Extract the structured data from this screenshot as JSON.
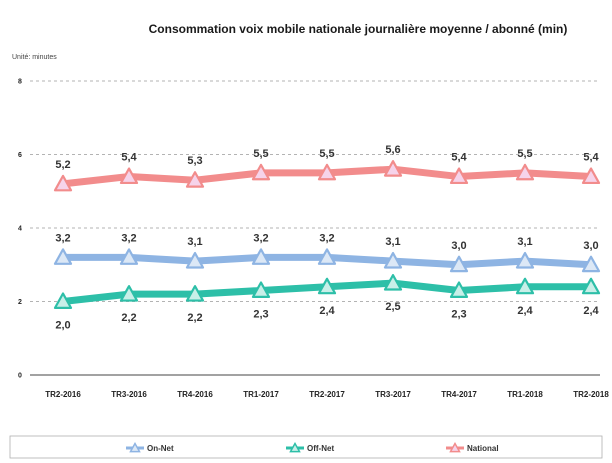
{
  "chart_data": {
    "type": "line",
    "title": "Consommation voix mobile  nationale journalière moyenne / abonné (min)",
    "unit_label": "Unité: minutes",
    "ylim": [
      0,
      8
    ],
    "yticks": [
      "0",
      "2",
      "4",
      "6",
      "8"
    ],
    "grid": true,
    "legend_position": "bottom",
    "categories": [
      "TR2-2016",
      "TR3-2016",
      "TR4-2016",
      "TR1-2017",
      "TR2-2017",
      "TR3-2017",
      "TR4-2017",
      "TR1-2018",
      "TR2-2018"
    ],
    "series": [
      {
        "name": "On-Net",
        "color": "#8eb4e3",
        "marker_fill": "#dce8f6",
        "values": [
          3.2,
          3.2,
          3.1,
          3.2,
          3.2,
          3.1,
          3.0,
          3.1,
          3.0
        ],
        "labels": [
          "3,2",
          "3,2",
          "3,1",
          "3,2",
          "3,2",
          "3,1",
          "3,0",
          "3,1",
          "3,0"
        ],
        "label_side": "above"
      },
      {
        "name": "Off-Net",
        "color": "#2dbfa8",
        "marker_fill": "#c8efe8",
        "values": [
          2.0,
          2.2,
          2.2,
          2.3,
          2.4,
          2.5,
          2.3,
          2.4,
          2.4
        ],
        "labels": [
          "2,0",
          "2,2",
          "2,2",
          "2,3",
          "2,4",
          "2,5",
          "2,3",
          "2,4",
          "2,4"
        ],
        "label_side": "below"
      },
      {
        "name": "National",
        "color": "#f28c8c",
        "marker_fill": "#f6d3ea",
        "values": [
          5.2,
          5.4,
          5.3,
          5.5,
          5.5,
          5.6,
          5.4,
          5.5,
          5.4
        ],
        "labels": [
          "5,2",
          "5,4",
          "5,3",
          "5,5",
          "5,5",
          "5,6",
          "5,4",
          "5,5",
          "5,4"
        ],
        "label_side": "above"
      }
    ]
  }
}
